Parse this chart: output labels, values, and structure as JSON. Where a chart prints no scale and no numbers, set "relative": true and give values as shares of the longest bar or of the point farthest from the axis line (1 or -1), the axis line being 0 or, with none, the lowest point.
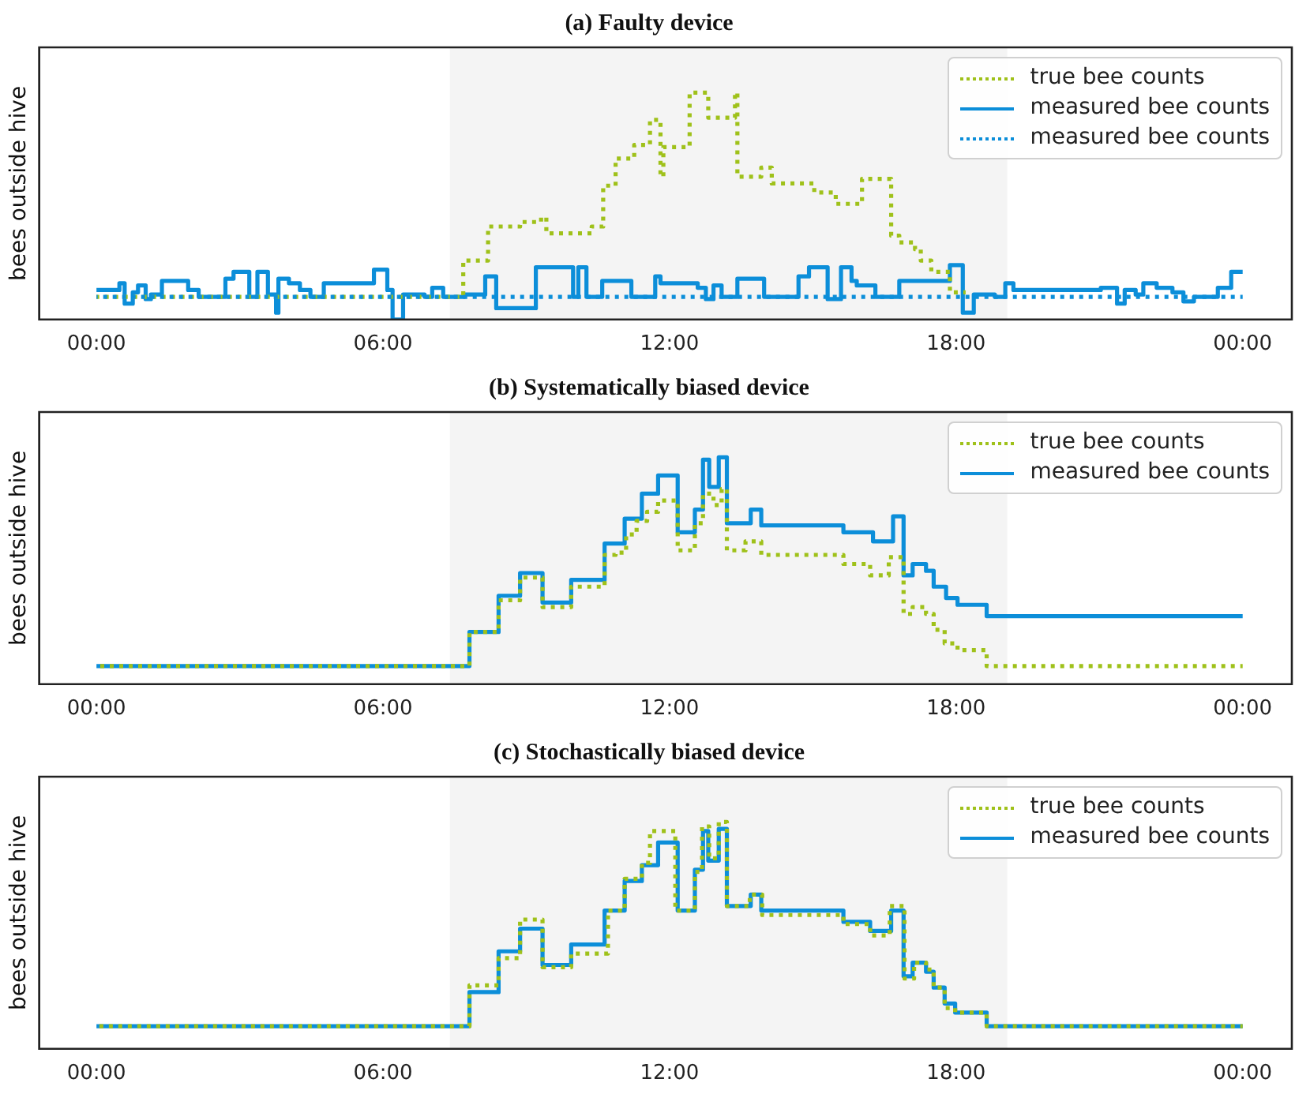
{
  "chart_data": [
    {
      "type": "step",
      "title": "(a) Faulty device",
      "ylabel": "bees outside hive",
      "relative": true,
      "tick_labels": "x",
      "legend": "top right",
      "xlim": [
        -1.2,
        25.03
      ],
      "xticks": [
        {
          "value": 0,
          "label": "00:00"
        },
        {
          "value": 6,
          "label": "06:00"
        },
        {
          "value": 12,
          "label": "12:00"
        },
        {
          "value": 18,
          "label": "18:00"
        },
        {
          "value": 24,
          "label": "00:00"
        }
      ],
      "bands": [
        {
          "axis": "x",
          "from": 7.4,
          "to": 19.07,
          "color": "#f4f4f4"
        }
      ],
      "series": [
        {
          "name": "true bee counts",
          "color": "#9fc11a",
          "line_style": "dotted",
          "x": [
            0,
            7.68,
            8.2,
            8.87,
            9.31,
            9.42,
            10.37,
            10.61,
            10.87,
            11.26,
            11.59,
            11.81,
            11.87,
            12.42,
            12.81,
            13.37,
            13.42,
            13.92,
            14.14,
            15.03,
            15.48,
            16.03,
            16.64,
            16.81,
            17.14,
            17.26,
            17.48,
            17.87,
            18.2
          ],
          "values": [
            0.1,
            0.26,
            0.41,
            0.43,
            0.45,
            0.38,
            0.41,
            0.59,
            0.71,
            0.77,
            0.88,
            0.63,
            0.76,
            1,
            0.89,
            1,
            0.63,
            0.67,
            0.6,
            0.56,
            0.51,
            0.62,
            0.37,
            0.34,
            0.31,
            0.26,
            0.21,
            0.12,
            0.12
          ]
        },
        {
          "name": "measured bee counts",
          "color": "#0c8ed9",
          "line_style": "solid",
          "x": [
            0,
            0.48,
            0.59,
            0.76,
            0.87,
            1.03,
            1.14,
            1.37,
            1.92,
            2.14,
            2.7,
            2.87,
            3.2,
            3.37,
            3.59,
            3.76,
            3.81,
            4.03,
            4.26,
            4.48,
            4.76,
            5.81,
            6.09,
            6.2,
            6.42,
            6.87,
            7.03,
            7.26,
            7.7,
            8.14,
            8.37,
            9.2,
            9.98,
            10.09,
            10.26,
            10.59,
            11.2,
            11.7,
            11.81,
            12.59,
            12.76,
            12.92,
            13.09,
            13.42,
            13.98,
            14.7,
            14.92,
            15.31,
            15.59,
            15.81,
            15.92,
            16.31,
            16.81,
            17.87,
            18.14,
            18.37,
            18.81,
            19.03,
            19.2,
            21.03,
            21.37,
            21.53,
            21.76,
            21.92,
            22.2,
            22.53,
            22.76,
            22.98,
            23.48,
            23.76,
            24
          ],
          "values": [
            0.13,
            0.16,
            0.07,
            0.12,
            0.15,
            0.09,
            0.11,
            0.17,
            0.13,
            0.1,
            0.18,
            0.21,
            0.1,
            0.21,
            0.11,
            0.03,
            0.18,
            0.16,
            0.13,
            0.1,
            0.16,
            0.22,
            0.13,
            0,
            0.11,
            0.1,
            0.14,
            0.1,
            0.11,
            0.19,
            0.05,
            0.23,
            0.1,
            0.23,
            0.1,
            0.17,
            0.1,
            0.19,
            0.16,
            0.14,
            0.09,
            0.15,
            0.1,
            0.18,
            0.1,
            0.19,
            0.23,
            0.09,
            0.23,
            0.17,
            0.15,
            0.1,
            0.17,
            0.24,
            0.03,
            0.11,
            0.1,
            0.16,
            0.13,
            0.14,
            0.07,
            0.13,
            0.11,
            0.16,
            0.14,
            0.12,
            0.08,
            0.1,
            0.14,
            0.21,
            0.21
          ]
        },
        {
          "name": "measured bee counts",
          "color": "#0c8ed9",
          "line_style": "dotted",
          "x": [
            0,
            24
          ],
          "values": [
            0.1,
            0.1
          ]
        }
      ]
    },
    {
      "type": "step",
      "title": "(b) Systematically biased device",
      "ylabel": "bees outside hive",
      "relative": true,
      "tick_labels": "x",
      "legend": "top right",
      "xlim": [
        -1.2,
        25.03
      ],
      "xticks": [
        {
          "value": 0,
          "label": "00:00"
        },
        {
          "value": 6,
          "label": "06:00"
        },
        {
          "value": 12,
          "label": "12:00"
        },
        {
          "value": 18,
          "label": "18:00"
        },
        {
          "value": 24,
          "label": "00:00"
        }
      ],
      "bands": [
        {
          "axis": "x",
          "from": 7.4,
          "to": 19.07,
          "color": "#f4f4f4"
        }
      ],
      "series": [
        {
          "name": "true bee counts",
          "color": "#9fc11a",
          "line_style": "dotted",
          "x": [
            0,
            7.81,
            8.42,
            8.87,
            9.34,
            9.94,
            10.64,
            10.87,
            11.09,
            11.31,
            11.53,
            11.76,
            12.17,
            12.53,
            12.7,
            12.92,
            13.09,
            13.2,
            13.59,
            13.92,
            15.64,
            16.2,
            16.59,
            16.9,
            17.09,
            17.37,
            17.53,
            17.76,
            18.03,
            18.64,
            24
          ],
          "values": [
            0.08,
            0.23,
            0.37,
            0.47,
            0.34,
            0.43,
            0.57,
            0.58,
            0.66,
            0.72,
            0.76,
            0.81,
            0.59,
            0.71,
            0.84,
            0.79,
            0.86,
            0.59,
            0.63,
            0.57,
            0.53,
            0.48,
            0.56,
            0.31,
            0.34,
            0.31,
            0.24,
            0.18,
            0.15,
            0.08,
            0.08
          ]
        },
        {
          "name": "measured bee counts",
          "color": "#0c8ed9",
          "line_style": "solid",
          "x": [
            0,
            7.81,
            8.42,
            8.87,
            9.34,
            9.94,
            10.64,
            11.06,
            11.42,
            11.76,
            12.17,
            12.53,
            12.7,
            12.83,
            13.03,
            13.2,
            13.7,
            13.92,
            15.64,
            16.26,
            16.68,
            16.9,
            17.09,
            17.37,
            17.53,
            17.79,
            18.03,
            18.64,
            24
          ],
          "values": [
            0.08,
            0.23,
            0.39,
            0.49,
            0.36,
            0.46,
            0.62,
            0.73,
            0.84,
            0.92,
            0.67,
            0.77,
            0.99,
            0.87,
            1,
            0.71,
            0.77,
            0.7,
            0.67,
            0.63,
            0.74,
            0.48,
            0.53,
            0.5,
            0.43,
            0.38,
            0.35,
            0.3,
            0.3
          ]
        }
      ]
    },
    {
      "type": "step",
      "title": "(c) Stochastically biased device",
      "ylabel": "bees outside hive",
      "relative": true,
      "tick_labels": "x",
      "legend": "top right",
      "xlim": [
        -1.2,
        25.03
      ],
      "xticks": [
        {
          "value": 0,
          "label": "00:00"
        },
        {
          "value": 6,
          "label": "06:00"
        },
        {
          "value": 12,
          "label": "12:00"
        },
        {
          "value": 18,
          "label": "18:00"
        },
        {
          "value": 24,
          "label": "00:00"
        }
      ],
      "bands": [
        {
          "axis": "x",
          "from": 7.4,
          "to": 19.07,
          "color": "#f4f4f4"
        }
      ],
      "series": [
        {
          "name": "true bee counts",
          "color": "#9fc11a",
          "line_style": "dotted",
          "x": [
            0,
            7.81,
            8.42,
            8.87,
            9.34,
            9.94,
            10.71,
            11.06,
            11.42,
            11.59,
            12.12,
            12.53,
            12.68,
            12.83,
            13.03,
            13.2,
            13.68,
            13.94,
            15.64,
            16.2,
            16.61,
            16.92,
            17.12,
            17.37,
            17.53,
            17.76,
            17.98,
            18.64,
            24
          ],
          "values": [
            0.1,
            0.28,
            0.4,
            0.57,
            0.36,
            0.42,
            0.61,
            0.75,
            0.82,
            0.96,
            0.61,
            0.78,
            0.98,
            0.84,
            1,
            0.63,
            0.68,
            0.59,
            0.55,
            0.5,
            0.63,
            0.31,
            0.38,
            0.35,
            0.27,
            0.18,
            0.16,
            0.1,
            0.1
          ]
        },
        {
          "name": "measured bee counts",
          "color": "#0c8ed9",
          "line_style": "solid",
          "x": [
            0,
            7.81,
            8.42,
            8.87,
            9.34,
            9.94,
            10.64,
            11.06,
            11.42,
            11.76,
            12.17,
            12.53,
            12.7,
            12.81,
            13.03,
            13.2,
            13.7,
            13.92,
            15.64,
            16.2,
            16.64,
            16.9,
            17.09,
            17.37,
            17.53,
            17.76,
            17.98,
            18.64,
            24
          ],
          "values": [
            0.1,
            0.25,
            0.43,
            0.53,
            0.37,
            0.46,
            0.61,
            0.74,
            0.81,
            0.91,
            0.61,
            0.79,
            0.96,
            0.83,
            0.97,
            0.63,
            0.68,
            0.61,
            0.56,
            0.52,
            0.61,
            0.32,
            0.38,
            0.34,
            0.27,
            0.2,
            0.16,
            0.1,
            0.1
          ]
        }
      ]
    }
  ]
}
